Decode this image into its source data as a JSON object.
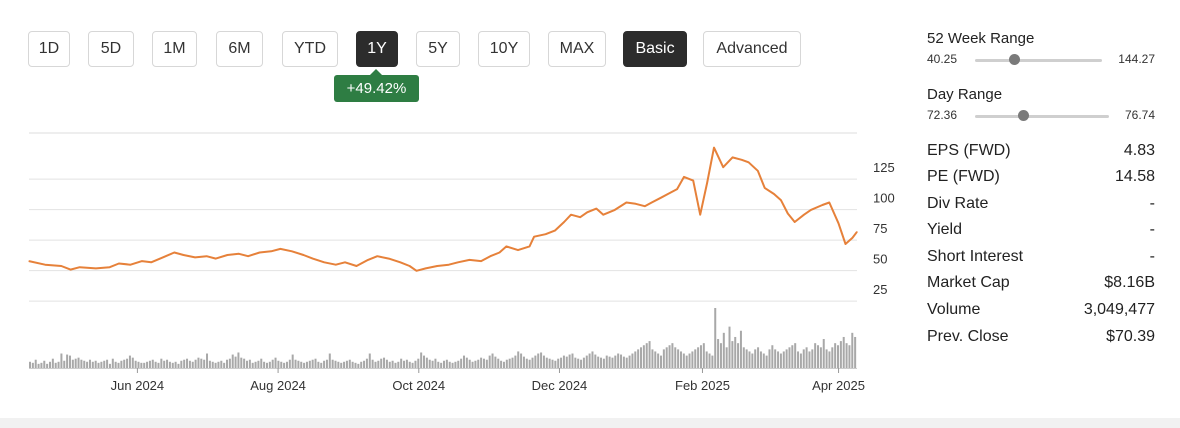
{
  "range_tabs": [
    {
      "label": "1D",
      "active": false
    },
    {
      "label": "5D",
      "active": false
    },
    {
      "label": "1M",
      "active": false
    },
    {
      "label": "6M",
      "active": false
    },
    {
      "label": "YTD",
      "active": false
    },
    {
      "label": "1Y",
      "active": true
    },
    {
      "label": "5Y",
      "active": false
    },
    {
      "label": "10Y",
      "active": false
    },
    {
      "label": "MAX",
      "active": false
    },
    {
      "label": "Basic",
      "active": true
    },
    {
      "label": "Advanced",
      "active": false
    }
  ],
  "change_badge": "+49.42%",
  "colors": {
    "price_line": "#e6813a",
    "badge": "#2e7d43",
    "volume_bar": "#a8a8a8",
    "active_tab": "#2c2c2c"
  },
  "stats": {
    "week52": {
      "title": "52 Week Range",
      "low": "40.25",
      "high": "144.27",
      "position": 0.31
    },
    "day": {
      "title": "Day Range",
      "low": "72.36",
      "high": "76.74",
      "position": 0.36
    },
    "rows": [
      {
        "label": "EPS (FWD)",
        "value": "4.83"
      },
      {
        "label": "PE (FWD)",
        "value": "14.58"
      },
      {
        "label": "Div Rate",
        "value": "-"
      },
      {
        "label": "Yield",
        "value": "-"
      },
      {
        "label": "Short Interest",
        "value": "-"
      },
      {
        "label": "Market Cap",
        "value": "$8.16B"
      },
      {
        "label": "Volume",
        "value": "3,049,477"
      },
      {
        "label": "Prev. Close",
        "value": "$70.39"
      }
    ]
  },
  "chart_data": {
    "type": "line",
    "x_tick_labels": [
      "Jun 2024",
      "Aug 2024",
      "Oct 2024",
      "Dec 2024",
      "Feb 2025",
      "Apr 2025"
    ],
    "y_tick_labels": [
      "125",
      "100",
      "75",
      "50",
      "25"
    ],
    "y_ticks": [
      125,
      100,
      75,
      50,
      25
    ],
    "ylim": [
      12,
      153
    ],
    "xlim": [
      "2024-04-15",
      "2025-04-09"
    ],
    "x_ticks": [
      "2024-06-01",
      "2024-08-01",
      "2024-10-01",
      "2024-12-01",
      "2025-02-01",
      "2025-04-01"
    ],
    "series": [
      {
        "points": [
          [
            "2024-04-15",
            48
          ],
          [
            "2024-04-22",
            45
          ],
          [
            "2024-04-29",
            44
          ],
          [
            "2024-05-03",
            41
          ],
          [
            "2024-05-07",
            43
          ],
          [
            "2024-05-14",
            42
          ],
          [
            "2024-05-20",
            43
          ],
          [
            "2024-05-24",
            46
          ],
          [
            "2024-05-29",
            45
          ],
          [
            "2024-06-03",
            48
          ],
          [
            "2024-06-07",
            47
          ],
          [
            "2024-06-12",
            51
          ],
          [
            "2024-06-17",
            55
          ],
          [
            "2024-06-21",
            53
          ],
          [
            "2024-06-26",
            51
          ],
          [
            "2024-07-01",
            52
          ],
          [
            "2024-07-05",
            50
          ],
          [
            "2024-07-10",
            53
          ],
          [
            "2024-07-15",
            54
          ],
          [
            "2024-07-19",
            52
          ],
          [
            "2024-07-24",
            55
          ],
          [
            "2024-07-29",
            56
          ],
          [
            "2024-08-02",
            58
          ],
          [
            "2024-08-07",
            56
          ],
          [
            "2024-08-12",
            53
          ],
          [
            "2024-08-16",
            50
          ],
          [
            "2024-08-21",
            47
          ],
          [
            "2024-08-26",
            45
          ],
          [
            "2024-08-30",
            47
          ],
          [
            "2024-09-04",
            44
          ],
          [
            "2024-09-09",
            49
          ],
          [
            "2024-09-13",
            52
          ],
          [
            "2024-09-18",
            50
          ],
          [
            "2024-09-23",
            47
          ],
          [
            "2024-09-27",
            44
          ],
          [
            "2024-09-30",
            40
          ],
          [
            "2024-10-04",
            42
          ],
          [
            "2024-10-09",
            44
          ],
          [
            "2024-10-14",
            45
          ],
          [
            "2024-10-18",
            47
          ],
          [
            "2024-10-23",
            49
          ],
          [
            "2024-10-28",
            48
          ],
          [
            "2024-11-01",
            52
          ],
          [
            "2024-11-05",
            55
          ],
          [
            "2024-11-08",
            60
          ],
          [
            "2024-11-13",
            57
          ],
          [
            "2024-11-18",
            60
          ],
          [
            "2024-11-20",
            68
          ],
          [
            "2024-11-25",
            70
          ],
          [
            "2024-11-29",
            73
          ],
          [
            "2024-12-03",
            80
          ],
          [
            "2024-12-06",
            86
          ],
          [
            "2024-12-10",
            84
          ],
          [
            "2024-12-13",
            88
          ],
          [
            "2024-12-17",
            91
          ],
          [
            "2024-12-20",
            86
          ],
          [
            "2024-12-25",
            90
          ],
          [
            "2024-12-30",
            96
          ],
          [
            "2025-01-03",
            95
          ],
          [
            "2025-01-07",
            93
          ],
          [
            "2025-01-10",
            96
          ],
          [
            "2025-01-14",
            100
          ],
          [
            "2025-01-17",
            103
          ],
          [
            "2025-01-21",
            107
          ],
          [
            "2025-01-24",
            117
          ],
          [
            "2025-01-28",
            114
          ],
          [
            "2025-01-31",
            86
          ],
          [
            "2025-02-03",
            112
          ],
          [
            "2025-02-06",
            141
          ],
          [
            "2025-02-10",
            125
          ],
          [
            "2025-02-14",
            133
          ],
          [
            "2025-02-18",
            131
          ],
          [
            "2025-02-21",
            129
          ],
          [
            "2025-02-25",
            122
          ],
          [
            "2025-02-28",
            108
          ],
          [
            "2025-03-04",
            103
          ],
          [
            "2025-03-07",
            98
          ],
          [
            "2025-03-10",
            87
          ],
          [
            "2025-03-13",
            80
          ],
          [
            "2025-03-17",
            86
          ],
          [
            "2025-03-20",
            90
          ],
          [
            "2025-03-25",
            94
          ],
          [
            "2025-03-28",
            96
          ],
          [
            "2025-04-01",
            79
          ],
          [
            "2025-04-04",
            62
          ],
          [
            "2025-04-07",
            67
          ],
          [
            "2025-04-09",
            72
          ]
        ]
      }
    ],
    "volume": [
      6,
      5,
      8,
      4,
      5,
      7,
      4,
      6,
      9,
      5,
      6,
      14,
      7,
      13,
      12,
      8,
      9,
      10,
      8,
      7,
      6,
      8,
      6,
      7,
      5,
      6,
      7,
      8,
      4,
      9,
      6,
      5,
      7,
      8,
      9,
      12,
      10,
      7,
      6,
      5,
      5,
      6,
      7,
      8,
      6,
      5,
      9,
      7,
      8,
      6,
      5,
      6,
      4,
      7,
      8,
      9,
      7,
      6,
      8,
      10,
      9,
      8,
      14,
      7,
      6,
      5,
      6,
      7,
      5,
      8,
      9,
      13,
      11,
      15,
      10,
      9,
      7,
      8,
      5,
      6,
      7,
      9,
      6,
      5,
      6,
      8,
      10,
      7,
      6,
      5,
      6,
      8,
      13,
      8,
      7,
      6,
      5,
      6,
      7,
      8,
      9,
      6,
      5,
      7,
      8,
      14,
      8,
      7,
      6,
      5,
      6,
      7,
      8,
      6,
      5,
      4,
      6,
      7,
      9,
      14,
      8,
      6,
      7,
      9,
      10,
      8,
      6,
      7,
      5,
      6,
      9,
      7,
      8,
      6,
      5,
      7,
      9,
      15,
      12,
      10,
      8,
      7,
      9,
      6,
      5,
      7,
      8,
      6,
      5,
      6,
      7,
      9,
      12,
      10,
      8,
      6,
      7,
      8,
      10,
      9,
      8,
      12,
      14,
      11,
      9,
      7,
      6,
      8,
      9,
      10,
      12,
      16,
      14,
      11,
      9,
      8,
      10,
      12,
      14,
      15,
      12,
      10,
      9,
      8,
      7,
      9,
      10,
      12,
      11,
      13,
      14,
      10,
      9,
      8,
      10,
      12,
      14,
      16,
      13,
      11,
      10,
      9,
      12,
      11,
      10,
      12,
      14,
      13,
      11,
      10,
      12,
      14,
      16,
      18,
      20,
      22,
      24,
      26,
      18,
      16,
      14,
      12,
      18,
      20,
      22,
      24,
      20,
      18,
      16,
      14,
      12,
      14,
      16,
      18,
      20,
      22,
      24,
      16,
      14,
      12,
      58,
      28,
      24,
      34,
      20,
      40,
      26,
      30,
      24,
      36,
      20,
      18,
      16,
      14,
      18,
      20,
      16,
      14,
      12,
      18,
      22,
      18,
      16,
      14,
      16,
      18,
      20,
      22,
      24,
      16,
      14,
      18,
      20,
      16,
      18,
      24,
      22,
      20,
      28,
      18,
      16,
      20,
      24,
      22,
      26,
      30,
      24,
      22,
      34,
      30
    ]
  }
}
